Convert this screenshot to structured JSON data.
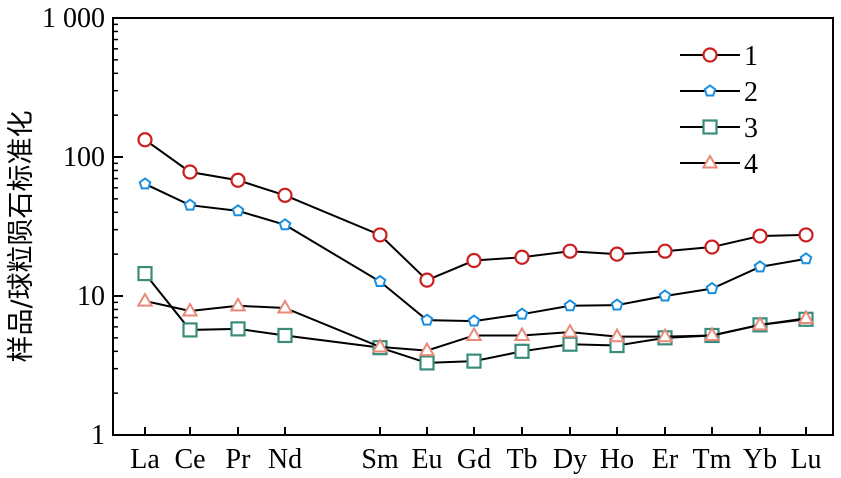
{
  "chart_data": {
    "type": "line",
    "title": "",
    "xlabel": "",
    "ylabel": "样品/球粒陨石标准化",
    "yscale": "log",
    "ylim": [
      1,
      1000
    ],
    "yticks": [
      1,
      10,
      100,
      1000
    ],
    "yticklabels": [
      "1",
      "10",
      "100",
      "1 000"
    ],
    "categories": [
      "La",
      "Ce",
      "Pr",
      "Nd",
      "Sm",
      "Eu",
      "Gd",
      "Tb",
      "Dy",
      "Ho",
      "Er",
      "Tm",
      "Yb",
      "Lu"
    ],
    "legend_position": "top-right",
    "series": [
      {
        "name": "1",
        "marker": "circle",
        "color": "#cc1f1f",
        "values": [
          133,
          78,
          68,
          53,
          27.5,
          13,
          18,
          19,
          21,
          20,
          21,
          22.5,
          27,
          27.5
        ]
      },
      {
        "name": "2",
        "marker": "pentagon",
        "color": "#1a8fe0",
        "values": [
          64,
          45,
          41,
          32.5,
          12.7,
          6.7,
          6.6,
          7.4,
          8.5,
          8.6,
          10,
          11.3,
          16.2,
          18.5
        ]
      },
      {
        "name": "3",
        "marker": "square",
        "color": "#3a8c7a",
        "values": [
          14.5,
          5.7,
          5.8,
          5.2,
          4.25,
          3.3,
          3.4,
          4.0,
          4.5,
          4.4,
          5.0,
          5.2,
          6.2,
          6.8
        ]
      },
      {
        "name": "4",
        "marker": "triangle",
        "color": "#e88a7a",
        "values": [
          9.2,
          7.8,
          8.5,
          8.2,
          4.3,
          4.05,
          5.2,
          5.2,
          5.5,
          5.1,
          5.1,
          5.2,
          6.2,
          6.9
        ]
      }
    ]
  }
}
